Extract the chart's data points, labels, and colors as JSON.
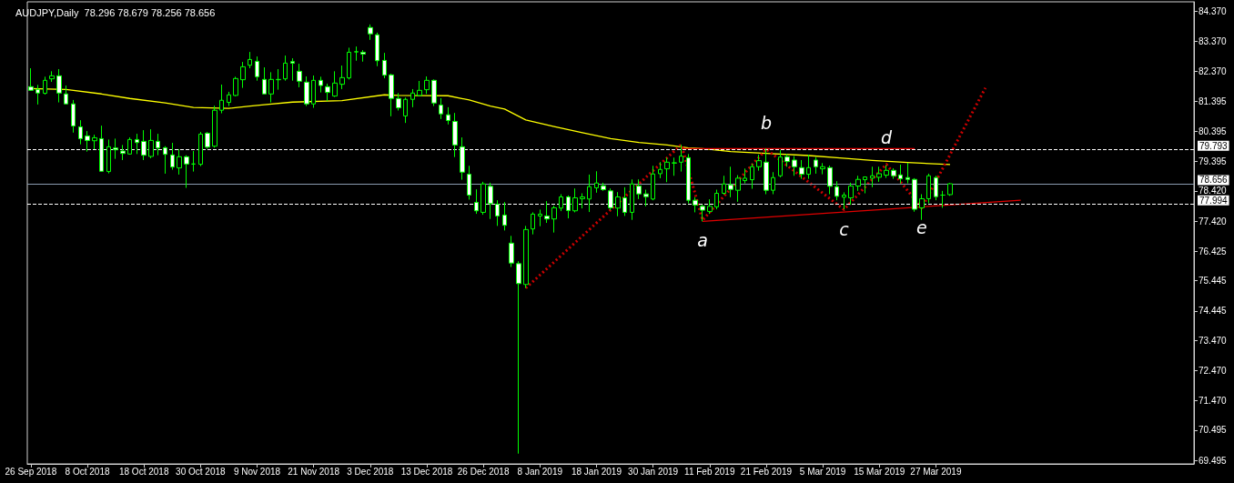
{
  "chart_data": {
    "type": "candlestick",
    "title": "AUDJPY,Daily  78.296 78.679 78.256 78.656",
    "color": "#00ff00",
    "grid": false,
    "marker": "none",
    "categories": [
      "26 Sep 2018",
      null,
      null,
      null,
      null,
      null,
      null,
      null,
      "8 Oct 2018",
      null,
      null,
      null,
      null,
      null,
      null,
      null,
      "18 Oct 2018",
      null,
      null,
      null,
      null,
      null,
      null,
      null,
      "30 Oct 2018",
      null,
      null,
      null,
      null,
      null,
      null,
      null,
      "9 Nov 2018",
      null,
      null,
      null,
      null,
      null,
      null,
      null,
      "21 Nov 2018",
      null,
      null,
      null,
      null,
      null,
      null,
      null,
      "3 Dec 2018",
      null,
      null,
      null,
      null,
      null,
      null,
      null,
      "13 Dec 2018",
      null,
      null,
      null,
      null,
      null,
      null,
      null,
      "26 Dec 2018",
      null,
      null,
      null,
      null,
      null,
      null,
      null,
      "8 Jan 2019",
      null,
      null,
      null,
      null,
      null,
      null,
      null,
      "18 Jan 2019",
      null,
      null,
      null,
      null,
      null,
      null,
      null,
      "30 Jan 2019",
      null,
      null,
      null,
      null,
      null,
      null,
      null,
      "11 Feb 2019",
      null,
      null,
      null,
      null,
      null,
      null,
      null,
      "21 Feb 2019",
      null,
      null,
      null,
      null,
      null,
      null,
      null,
      "5 Mar 2019",
      null,
      null,
      null,
      null,
      null,
      null,
      null,
      "15 Mar 2019",
      null,
      null,
      null,
      null,
      null,
      null,
      null,
      "27 Mar 2019",
      null,
      null,
      null,
      null,
      null,
      null,
      null,
      null,
      null,
      null,
      null,
      null,
      null,
      null,
      null,
      null,
      null,
      null,
      null,
      null,
      null,
      null,
      null,
      null,
      null,
      null,
      null,
      null,
      null,
      null,
      null,
      null,
      null,
      null,
      null,
      null
    ],
    "ohlc": [
      [
        81.87,
        82.48,
        81.73,
        81.75
      ],
      [
        81.78,
        81.93,
        81.28,
        81.66
      ],
      [
        81.65,
        82.2,
        81.61,
        82.08
      ],
      [
        82.13,
        82.38,
        82.03,
        82.23
      ],
      [
        82.23,
        82.45,
        81.35,
        81.66
      ],
      [
        81.63,
        81.91,
        81.3,
        81.3
      ],
      [
        81.3,
        81.43,
        80.35,
        80.57
      ],
      [
        80.54,
        80.76,
        79.96,
        80.15
      ],
      [
        80.24,
        80.4,
        79.72,
        80.09
      ],
      [
        80.08,
        80.28,
        79.8,
        80.18
      ],
      [
        80.15,
        80.58,
        79.07,
        79.07
      ],
      [
        79.06,
        80.12,
        79.0,
        79.88
      ],
      [
        79.84,
        80.15,
        79.48,
        79.78
      ],
      [
        79.74,
        79.94,
        79.44,
        79.66
      ],
      [
        79.64,
        80.19,
        79.62,
        80.12
      ],
      [
        80.12,
        80.31,
        79.64,
        80.02
      ],
      [
        80.06,
        80.43,
        79.44,
        79.6
      ],
      [
        79.56,
        80.46,
        79.5,
        80.09
      ],
      [
        80.06,
        80.31,
        79.6,
        79.84
      ],
      [
        79.85,
        79.9,
        78.99,
        79.63
      ],
      [
        79.61,
        80.01,
        79.12,
        79.21
      ],
      [
        79.18,
        79.8,
        78.96,
        79.55
      ],
      [
        79.55,
        79.6,
        78.52,
        79.31
      ],
      [
        79.31,
        79.74,
        79.06,
        79.31
      ],
      [
        79.3,
        80.37,
        79.24,
        80.3
      ],
      [
        80.33,
        80.37,
        79.82,
        79.87
      ],
      [
        79.9,
        81.24,
        79.85,
        81.09
      ],
      [
        81.09,
        81.94,
        80.99,
        81.42
      ],
      [
        81.35,
        81.7,
        81.23,
        81.6
      ],
      [
        81.58,
        82.2,
        81.55,
        82.14
      ],
      [
        82.1,
        82.69,
        81.83,
        82.53
      ],
      [
        82.58,
        83.02,
        82.48,
        82.77
      ],
      [
        82.71,
        82.87,
        82.07,
        82.2
      ],
      [
        82.11,
        82.51,
        81.63,
        81.63
      ],
      [
        81.63,
        82.35,
        81.35,
        82.11
      ],
      [
        82.1,
        82.45,
        81.77,
        82.11
      ],
      [
        82.13,
        82.9,
        82.07,
        82.65
      ],
      [
        82.7,
        82.81,
        82.07,
        82.65
      ],
      [
        82.38,
        82.63,
        81.85,
        82.05
      ],
      [
        82.02,
        82.21,
        81.23,
        81.3
      ],
      [
        81.3,
        82.24,
        81.17,
        82.08
      ],
      [
        82.08,
        82.2,
        81.68,
        81.91
      ],
      [
        81.87,
        81.97,
        81.39,
        81.68
      ],
      [
        81.56,
        82.38,
        81.53,
        81.99
      ],
      [
        81.95,
        82.57,
        81.79,
        82.17
      ],
      [
        82.16,
        83.16,
        82.11,
        83.01
      ],
      [
        83.02,
        83.2,
        82.73,
        83.03
      ],
      [
        83.01,
        83.08,
        82.7,
        82.95
      ],
      [
        83.83,
        83.93,
        83.42,
        83.62
      ],
      [
        83.59,
        83.66,
        82.55,
        82.73
      ],
      [
        82.74,
        82.99,
        82.15,
        82.25
      ],
      [
        82.26,
        82.3,
        80.89,
        81.48
      ],
      [
        81.48,
        81.66,
        81.08,
        81.17
      ],
      [
        80.9,
        81.51,
        80.67,
        81.45
      ],
      [
        81.45,
        81.79,
        81.19,
        81.66
      ],
      [
        81.58,
        82.06,
        81.55,
        81.75
      ],
      [
        81.77,
        82.21,
        81.63,
        82.08
      ],
      [
        82.08,
        82.11,
        81.23,
        81.33
      ],
      [
        81.26,
        81.49,
        80.8,
        80.97
      ],
      [
        80.94,
        81.19,
        80.62,
        80.75
      ],
      [
        80.72,
        81.0,
        79.54,
        79.94
      ],
      [
        79.88,
        80.19,
        78.79,
        79.04
      ],
      [
        78.97,
        79.25,
        78.13,
        78.28
      ],
      [
        78.04,
        78.47,
        77.66,
        77.76
      ],
      [
        77.71,
        78.72,
        77.63,
        78.65
      ],
      [
        78.57,
        78.69,
        77.49,
        78.0
      ],
      [
        77.98,
        78.11,
        77.26,
        77.59
      ],
      [
        77.62,
        78.05,
        77.11,
        77.28
      ],
      [
        76.69,
        76.93,
        75.9,
        76.03
      ],
      [
        76.01,
        76.09,
        69.72,
        75.35
      ],
      [
        75.32,
        77.26,
        75.2,
        77.14
      ],
      [
        77.16,
        77.71,
        76.98,
        77.65
      ],
      [
        77.59,
        77.8,
        77.25,
        77.65
      ],
      [
        77.59,
        78.08,
        77.36,
        77.49
      ],
      [
        77.49,
        77.93,
        77.04,
        77.86
      ],
      [
        77.85,
        78.31,
        77.75,
        78.22
      ],
      [
        78.22,
        78.27,
        77.51,
        77.77
      ],
      [
        77.76,
        78.5,
        77.71,
        78.19
      ],
      [
        78.16,
        78.34,
        77.84,
        78.22
      ],
      [
        78.15,
        78.96,
        77.72,
        78.56
      ],
      [
        78.52,
        79.07,
        78.36,
        78.68
      ],
      [
        78.59,
        78.69,
        78.42,
        78.46
      ],
      [
        78.42,
        78.5,
        77.78,
        77.86
      ],
      [
        77.85,
        78.38,
        77.58,
        78.22
      ],
      [
        78.19,
        78.54,
        77.59,
        77.71
      ],
      [
        77.71,
        78.8,
        77.46,
        78.65
      ],
      [
        78.58,
        78.8,
        78.15,
        78.32
      ],
      [
        78.32,
        78.46,
        77.91,
        78.23
      ],
      [
        78.15,
        79.25,
        78.11,
        78.98
      ],
      [
        78.99,
        79.37,
        78.84,
        79.13
      ],
      [
        79.15,
        79.52,
        78.71,
        79.37
      ],
      [
        79.34,
        79.52,
        78.92,
        79.35
      ],
      [
        79.37,
        79.95,
        79.06,
        79.57
      ],
      [
        79.52,
        79.64,
        78.01,
        78.11
      ],
      [
        78.11,
        78.21,
        77.71,
        77.95
      ],
      [
        77.91,
        77.96,
        77.41,
        77.78
      ],
      [
        77.74,
        78.14,
        77.66,
        77.91
      ],
      [
        77.89,
        78.46,
        77.81,
        78.34
      ],
      [
        78.34,
        78.92,
        78.3,
        78.65
      ],
      [
        78.62,
        79.22,
        78.21,
        78.47
      ],
      [
        78.44,
        78.94,
        78.06,
        78.84
      ],
      [
        78.76,
        79.16,
        78.67,
        78.84
      ],
      [
        78.79,
        79.32,
        78.49,
        79.22
      ],
      [
        79.22,
        79.62,
        79.09,
        79.42
      ],
      [
        79.37,
        79.82,
        78.31,
        78.44
      ],
      [
        78.44,
        79.04,
        78.31,
        78.86
      ],
      [
        78.92,
        79.77,
        78.87,
        79.54
      ],
      [
        79.55,
        79.64,
        79.22,
        79.39
      ],
      [
        79.44,
        79.57,
        78.92,
        79.22
      ],
      [
        79.19,
        79.44,
        78.82,
        78.97
      ],
      [
        78.97,
        79.62,
        78.82,
        79.19
      ],
      [
        79.44,
        79.54,
        78.99,
        79.22
      ],
      [
        79.15,
        79.34,
        78.97,
        79.22
      ],
      [
        79.19,
        79.26,
        78.31,
        78.57
      ],
      [
        78.56,
        78.74,
        78.11,
        78.24
      ],
      [
        78.21,
        78.37,
        77.81,
        78.28
      ],
      [
        78.19,
        78.69,
        77.96,
        78.58
      ],
      [
        78.58,
        78.92,
        78.42,
        78.8
      ],
      [
        78.79,
        78.9,
        78.34,
        78.88
      ],
      [
        78.84,
        79.22,
        78.54,
        78.92
      ],
      [
        78.87,
        79.22,
        78.72,
        78.99
      ],
      [
        78.94,
        79.27,
        78.85,
        79.1
      ],
      [
        79.1,
        79.17,
        78.82,
        78.92
      ],
      [
        78.95,
        79.29,
        78.67,
        78.82
      ],
      [
        78.86,
        79.35,
        78.67,
        78.8
      ],
      [
        78.8,
        78.84,
        77.73,
        77.81
      ],
      [
        77.86,
        78.31,
        77.46,
        78.16
      ],
      [
        78.16,
        78.99,
        78.01,
        78.92
      ],
      [
        78.86,
        78.92,
        78.11,
        78.23
      ],
      [
        78.28,
        78.42,
        77.86,
        78.28
      ],
      [
        78.296,
        78.679,
        78.256,
        78.656
      ],
      null,
      null,
      null,
      null,
      null,
      null,
      null,
      null,
      null,
      null,
      null,
      null,
      null,
      null,
      null,
      null,
      null,
      null,
      null,
      null,
      null,
      null,
      null,
      null,
      null,
      null,
      null,
      null,
      null,
      null,
      null,
      null,
      null,
      null
    ],
    "series": [
      {
        "type": "line",
        "color": "#ffff00",
        "line_style": "solid",
        "values": [
          81.81,
          null,
          null,
          null,
          null,
          81.78,
          null,
          null,
          null,
          null,
          81.63,
          null,
          null,
          null,
          81.48,
          null,
          null,
          null,
          null,
          81.33,
          null,
          null,
          null,
          81.18,
          null,
          null,
          null,
          null,
          81.15,
          null,
          null,
          81.23,
          null,
          81.27,
          null,
          null,
          null,
          81.36,
          null,
          null,
          null,
          null,
          null,
          null,
          81.41,
          null,
          null,
          null,
          null,
          null,
          81.6,
          null,
          81.58,
          null,
          null,
          null,
          null,
          null,
          null,
          81.57,
          null,
          null,
          81.43,
          null,
          null,
          81.23,
          null,
          81.13,
          null,
          null,
          80.77,
          null,
          null,
          null,
          80.55,
          null,
          null,
          null,
          80.35,
          null,
          null,
          null,
          80.15,
          null,
          null,
          null,
          80.02,
          null,
          null,
          null,
          79.94,
          null,
          null,
          79.84,
          null,
          79.82,
          null,
          null,
          null,
          79.72,
          null,
          null,
          null,
          null,
          79.66,
          null,
          null,
          null,
          null,
          null,
          79.59,
          null,
          null,
          null,
          79.52,
          null,
          null,
          null,
          null,
          79.43,
          null,
          null,
          null,
          null,
          79.36,
          null,
          null,
          null,
          null,
          null,
          79.29,
          null,
          null,
          null,
          null,
          null,
          null,
          null,
          null,
          null,
          null,
          null,
          null,
          null,
          null,
          null,
          null,
          null,
          null,
          null,
          null,
          null,
          null,
          null,
          null,
          null,
          null,
          null,
          null,
          null,
          null,
          null,
          null,
          null,
          null
        ]
      },
      {
        "type": "line",
        "color": "#cc0000",
        "line_style": "dotted",
        "values": [
          null,
          null,
          null,
          null,
          null,
          null,
          null,
          null,
          null,
          null,
          null,
          null,
          null,
          null,
          null,
          null,
          null,
          null,
          null,
          null,
          null,
          null,
          null,
          null,
          null,
          null,
          null,
          null,
          null,
          null,
          null,
          null,
          null,
          null,
          null,
          null,
          null,
          null,
          null,
          null,
          null,
          null,
          null,
          null,
          null,
          null,
          null,
          null,
          null,
          null,
          null,
          null,
          null,
          null,
          null,
          null,
          null,
          null,
          null,
          null,
          null,
          null,
          null,
          null,
          null,
          null,
          null,
          null,
          null,
          null,
          75.2,
          null,
          null,
          null,
          null,
          null,
          null,
          null,
          null,
          null,
          null,
          null,
          null,
          null,
          null,
          null,
          null,
          null,
          null,
          null,
          null,
          null,
          79.95,
          null,
          null,
          77.45,
          null,
          null,
          null,
          null,
          null,
          null,
          null,
          null,
          79.8,
          null,
          null,
          null,
          null,
          null,
          null,
          null,
          null,
          null,
          null,
          77.8,
          null,
          null,
          null,
          null,
          null,
          79.3,
          null,
          null,
          null,
          null,
          77.85,
          null,
          null,
          null,
          null,
          null,
          null,
          null,
          null,
          81.83,
          null,
          null,
          null,
          null,
          null,
          null,
          null,
          null,
          null,
          null,
          null,
          null,
          null,
          null,
          null,
          null,
          null,
          null,
          null,
          null,
          null,
          null,
          null,
          null,
          null,
          null,
          null,
          null,
          null
        ],
        "value_labels": [
          null,
          null,
          null,
          null,
          null,
          null,
          null,
          null,
          null,
          null,
          null,
          null,
          null,
          null,
          null,
          null,
          null,
          null,
          null,
          null,
          null,
          null,
          null,
          null,
          null,
          null,
          null,
          null,
          null,
          null,
          null,
          null,
          null,
          null,
          null,
          null,
          null,
          null,
          null,
          null,
          null,
          null,
          null,
          null,
          null,
          null,
          null,
          null,
          null,
          null,
          null,
          null,
          null,
          null,
          null,
          null,
          null,
          null,
          null,
          null,
          null,
          null,
          null,
          null,
          null,
          null,
          null,
          null,
          null,
          null,
          null,
          null,
          null,
          null,
          null,
          null,
          null,
          null,
          null,
          null,
          null,
          null,
          null,
          null,
          null,
          null,
          null,
          null,
          null,
          null,
          null,
          null,
          null,
          null,
          null,
          "a",
          null,
          null,
          null,
          null,
          null,
          null,
          null,
          null,
          "b",
          null,
          null,
          null,
          null,
          null,
          null,
          null,
          null,
          null,
          null,
          "c",
          null,
          null,
          null,
          null,
          null,
          "d",
          null,
          null,
          null,
          null,
          "e",
          null,
          null,
          null,
          null,
          null,
          null,
          null,
          null,
          null,
          null,
          null,
          null,
          null,
          null,
          null,
          null,
          null,
          null,
          null,
          null,
          null,
          null,
          null,
          null,
          null,
          null,
          null,
          null,
          null,
          null,
          null,
          null,
          null,
          null,
          null,
          null,
          null,
          null
        ]
      },
      {
        "type": "line",
        "color": "#e00000",
        "line_style": "solid",
        "values": [
          null,
          null,
          null,
          null,
          null,
          null,
          null,
          null,
          null,
          null,
          null,
          null,
          null,
          null,
          null,
          null,
          null,
          null,
          null,
          null,
          null,
          null,
          null,
          null,
          null,
          null,
          null,
          null,
          null,
          null,
          null,
          null,
          null,
          null,
          null,
          null,
          null,
          null,
          null,
          null,
          null,
          null,
          null,
          null,
          null,
          null,
          null,
          null,
          null,
          null,
          null,
          null,
          null,
          null,
          null,
          null,
          null,
          null,
          null,
          null,
          null,
          null,
          null,
          null,
          null,
          null,
          null,
          null,
          null,
          null,
          null,
          null,
          null,
          null,
          null,
          null,
          null,
          null,
          null,
          null,
          null,
          null,
          null,
          null,
          null,
          null,
          null,
          null,
          null,
          null,
          null,
          null,
          null,
          null,
          null,
          77.41,
          null,
          null,
          null,
          null,
          null,
          null,
          null,
          null,
          null,
          null,
          null,
          null,
          null,
          null,
          null,
          null,
          null,
          null,
          null,
          null,
          null,
          null,
          null,
          null,
          null,
          null,
          null,
          null,
          null,
          null,
          null,
          null,
          null,
          null,
          null,
          null,
          null,
          null,
          null,
          null,
          null,
          null,
          null,
          null,
          78.11,
          null,
          null,
          null,
          null,
          null,
          null,
          null,
          null,
          null,
          null,
          null,
          null,
          null,
          null,
          null,
          null,
          null,
          null,
          null,
          null,
          null,
          null,
          null,
          null
        ]
      },
      {
        "type": "line",
        "color": "#e00000",
        "line_style": "solid",
        "values": [
          null,
          null,
          null,
          null,
          null,
          null,
          null,
          null,
          null,
          null,
          null,
          null,
          null,
          null,
          null,
          null,
          null,
          null,
          null,
          null,
          null,
          null,
          null,
          null,
          null,
          null,
          null,
          null,
          null,
          null,
          null,
          null,
          null,
          null,
          null,
          null,
          null,
          null,
          null,
          null,
          null,
          null,
          null,
          null,
          null,
          null,
          null,
          null,
          null,
          null,
          null,
          null,
          null,
          null,
          null,
          null,
          null,
          null,
          null,
          null,
          null,
          null,
          null,
          null,
          null,
          null,
          null,
          null,
          null,
          null,
          null,
          null,
          null,
          null,
          null,
          null,
          null,
          null,
          null,
          null,
          null,
          null,
          null,
          null,
          null,
          null,
          null,
          null,
          null,
          null,
          null,
          null,
          79.82,
          null,
          null,
          null,
          null,
          null,
          null,
          null,
          null,
          null,
          null,
          null,
          null,
          null,
          null,
          null,
          null,
          null,
          null,
          null,
          null,
          null,
          null,
          null,
          null,
          null,
          null,
          null,
          null,
          null,
          null,
          null,
          null,
          79.82,
          null,
          null,
          null,
          null,
          null,
          null,
          null,
          null,
          null,
          null,
          null,
          null,
          null,
          null,
          null,
          null,
          null,
          null,
          null,
          null,
          null,
          null,
          null,
          null,
          null,
          null,
          null,
          null,
          null,
          null,
          null,
          null,
          null,
          null,
          null,
          null,
          null,
          null,
          null
        ]
      }
    ],
    "ylim": [
      69.38,
      84.68
    ],
    "yticks": [
      {
        "value": 69.495,
        "label": "69.495"
      },
      {
        "value": 70.495,
        "label": "70.495"
      },
      {
        "value": 71.47,
        "label": "71.470"
      },
      {
        "value": 72.47,
        "label": "72.470"
      },
      {
        "value": 73.47,
        "label": "73.470"
      },
      {
        "value": 74.445,
        "label": "74.445"
      },
      {
        "value": 75.445,
        "label": "75.445"
      },
      {
        "value": 76.425,
        "label": "76.425"
      },
      {
        "value": 77.42,
        "label": "77.420"
      },
      {
        "value": 78.42,
        "label": "78.420"
      },
      {
        "value": 79.395,
        "label": "79.395"
      },
      {
        "value": 80.395,
        "label": "80.395"
      },
      {
        "value": 81.395,
        "label": "81.395"
      },
      {
        "value": 82.37,
        "label": "82.370"
      },
      {
        "value": 83.37,
        "label": "83.370"
      },
      {
        "value": 84.37,
        "label": "84.370"
      }
    ],
    "ref_lines": [
      {
        "axis": "y",
        "value": 79.793,
        "label": "79.793",
        "color": "#ffffff",
        "line_style": "dashed"
      },
      {
        "axis": "y",
        "value": 78.656,
        "label": "78.656",
        "color": "#8a9bb0",
        "line_style": "solid"
      },
      {
        "axis": "y",
        "value": 77.994,
        "label": "77.994",
        "color": "#ffffff",
        "line_style": "dashed"
      }
    ]
  }
}
